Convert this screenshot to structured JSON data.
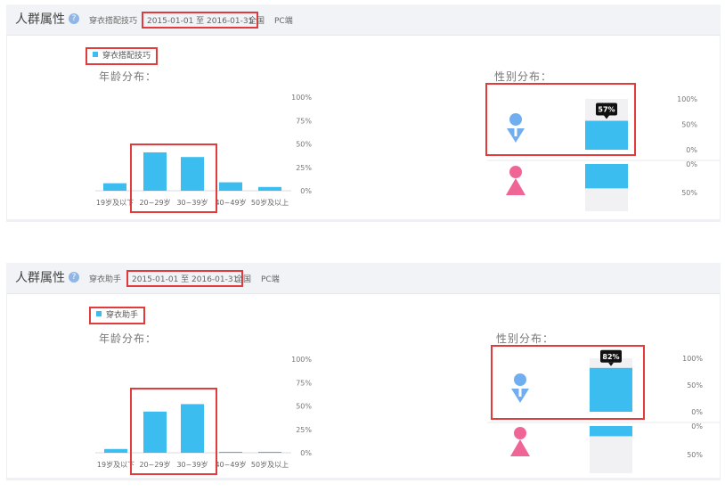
{
  "colors": {
    "bar": "#3bbdf0",
    "male": "#70aef0",
    "female": "#ef6596",
    "pending": "#f1f1f3",
    "highlight": "#e23b3b"
  },
  "icons": [
    "help-icon",
    "male-icon",
    "female-icon"
  ],
  "panels": [
    {
      "title": "人群属性",
      "keyword": "穿衣搭配技巧",
      "date_range": "2015-01-01 至 2016-01-31",
      "region": "全国",
      "platform": "PC端",
      "legend": "穿衣搭配技巧",
      "age_title": "年龄分布：",
      "gender_title": "性别分布：",
      "gender_label": "57%"
    },
    {
      "title": "人群属性",
      "keyword": "穿衣助手",
      "date_range": "2015-01-01 至 2016-01-31",
      "region": "全国",
      "platform": "PC端",
      "legend": "穿衣助手",
      "age_title": "年龄分布：",
      "gender_title": "性别分布：",
      "gender_label": "82%"
    }
  ],
  "chart_data": [
    {
      "type": "bar",
      "categories": [
        "19岁及以下",
        "20~29岁",
        "30~39岁",
        "40~49岁",
        "50岁及以上"
      ],
      "values": [
        8,
        41,
        36,
        9,
        4
      ],
      "series": [
        {
          "name": "穿衣搭配技巧",
          "values": [
            8,
            41,
            36,
            9,
            4
          ]
        }
      ],
      "yticks": [
        "0%",
        "25%",
        "50%",
        "75%",
        "100%"
      ],
      "ylim": [
        0,
        100
      ],
      "highlighted": [
        "20~29岁",
        "30~39岁"
      ],
      "legend_position": "top-left"
    },
    {
      "type": "bar",
      "categories": [
        "男",
        "女"
      ],
      "values": [
        57,
        43
      ],
      "series": [
        {
          "name": "穿衣搭配技巧",
          "values": [
            57,
            43
          ]
        }
      ],
      "yticks_top": [
        "0%",
        "50%",
        "100%"
      ],
      "yticks_bottom": [
        "0%",
        "50%"
      ],
      "ylim": [
        0,
        100
      ]
    },
    {
      "type": "bar",
      "categories": [
        "19岁及以下",
        "20~29岁",
        "30~39岁",
        "40~49岁",
        "50岁及以上"
      ],
      "values": [
        4,
        44,
        52,
        1,
        1
      ],
      "series": [
        {
          "name": "穿衣助手",
          "values": [
            4,
            44,
            52,
            1,
            1
          ]
        }
      ],
      "yticks": [
        "0%",
        "25%",
        "50%",
        "75%",
        "100%"
      ],
      "ylim": [
        0,
        100
      ],
      "highlighted": [
        "20~29岁",
        "30~39岁"
      ],
      "legend_position": "top-left"
    },
    {
      "type": "bar",
      "categories": [
        "男",
        "女"
      ],
      "values": [
        82,
        18
      ],
      "series": [
        {
          "name": "穿衣助手",
          "values": [
            82,
            18
          ]
        }
      ],
      "yticks_top": [
        "0%",
        "50%",
        "100%"
      ],
      "yticks_bottom": [
        "0%",
        "50%"
      ],
      "ylim": [
        0,
        100
      ]
    }
  ]
}
